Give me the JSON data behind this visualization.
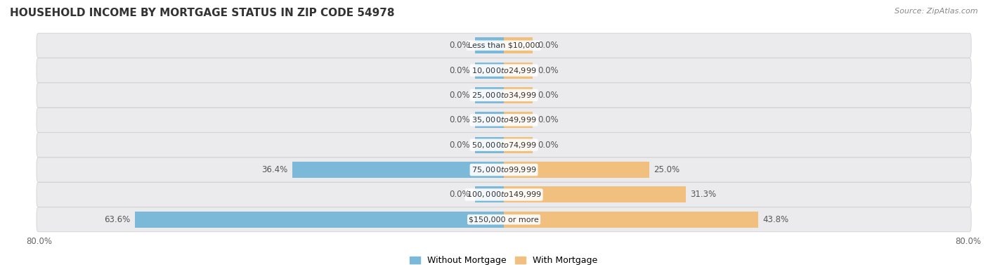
{
  "title": "HOUSEHOLD INCOME BY MORTGAGE STATUS IN ZIP CODE 54978",
  "source": "Source: ZipAtlas.com",
  "categories": [
    "Less than $10,000",
    "$10,000 to $24,999",
    "$25,000 to $34,999",
    "$35,000 to $49,999",
    "$50,000 to $74,999",
    "$75,000 to $99,999",
    "$100,000 to $149,999",
    "$150,000 or more"
  ],
  "without_mortgage": [
    0.0,
    0.0,
    0.0,
    0.0,
    0.0,
    36.4,
    0.0,
    63.6
  ],
  "with_mortgage": [
    0.0,
    0.0,
    0.0,
    0.0,
    0.0,
    25.0,
    31.3,
    43.8
  ],
  "color_without": "#7cb8d8",
  "color_with": "#f2c07e",
  "color_row_bg": "#ebebee",
  "color_fig_bg": "#ffffff",
  "xlim": 80,
  "stub_size": 5.0,
  "bar_height": 0.65,
  "label_fontsize": 8.5,
  "cat_fontsize": 8.0,
  "tick_fontsize": 8.5,
  "title_fontsize": 11,
  "source_fontsize": 8,
  "legend_fontsize": 9,
  "legend_labels": [
    "Without Mortgage",
    "With Mortgage"
  ]
}
